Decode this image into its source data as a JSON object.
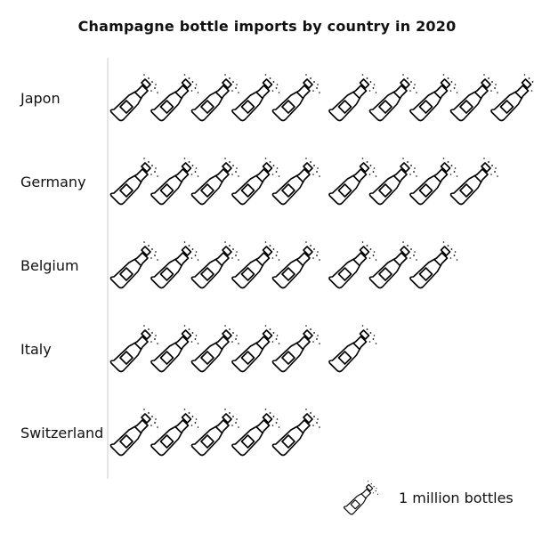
{
  "chart_data": {
    "type": "pictograph",
    "title": "Champagne bottle imports by country in 2020",
    "categories": [
      "Japon",
      "Germany",
      "Belgium",
      "Italy",
      "Switzerland"
    ],
    "values": [
      10,
      9,
      8,
      6,
      5
    ],
    "unit_label": "1 million bottles",
    "units_per_icon": 1,
    "icon": "champagne-bottle-icon",
    "grid": false,
    "legend_position": "bottom-right"
  }
}
